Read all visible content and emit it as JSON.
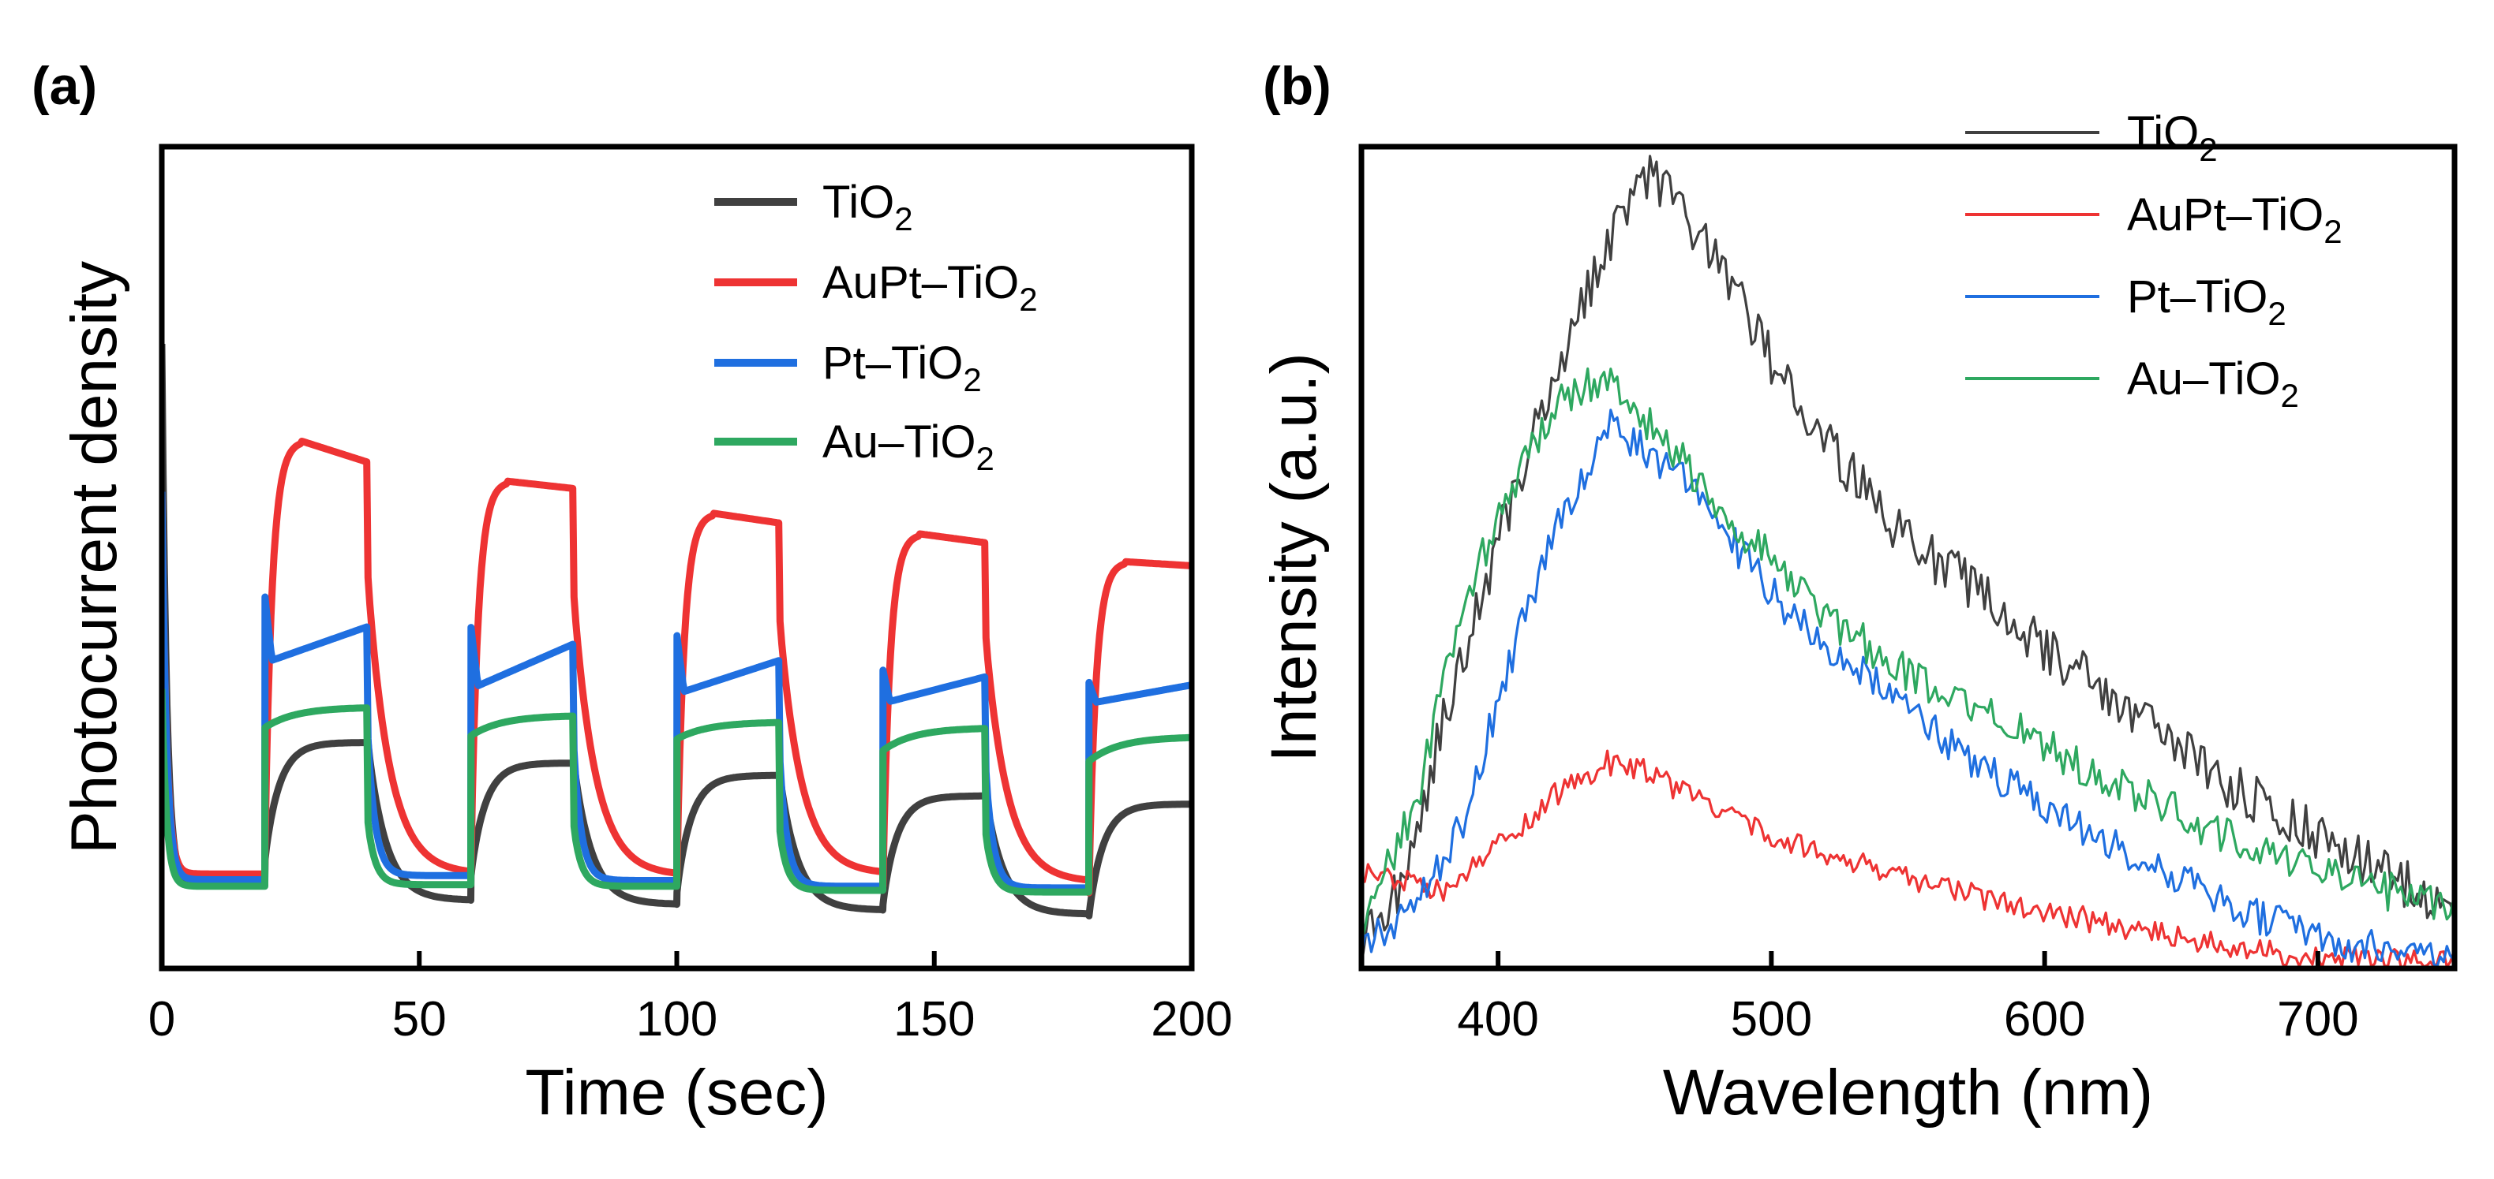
{
  "chart_data": [
    {
      "panel": "(a)",
      "type": "line",
      "xlabel": "Time (sec)",
      "ylabel": "Photocurrent density",
      "xlim": [
        0,
        200
      ],
      "ylim": [
        0,
        100
      ],
      "xticks": [
        0,
        50,
        100,
        150,
        200
      ],
      "legend_position": "top-right",
      "light_on_off_periods_sec": [
        [
          20,
          40
        ],
        [
          60,
          80
        ],
        [
          100,
          120
        ],
        [
          140,
          160
        ],
        [
          180,
          200
        ]
      ],
      "series": [
        {
          "name": "TiO2",
          "label_main": "TiO",
          "label_sub": "2",
          "label_tail": "",
          "color": "#404040",
          "on_start": [
            13.2,
            11.3,
            9.3,
            7.8,
            6.4
          ],
          "on_end": [
            27.5,
            25.0,
            23.5,
            21.0,
            20.0
          ],
          "off_end": [
            8.3,
            7.8,
            7.1,
            6.6,
            6.4
          ],
          "initial_spike": 76,
          "initial_base": 10.5
        },
        {
          "name": "AuPt-TiO2",
          "label_main": "AuPt–TiO",
          "label_sub": "2",
          "label_tail": "",
          "color": "#EE3333",
          "on_start": [
            14.0,
            12.0,
            11.0,
            10.0,
            9.2
          ],
          "on_end": [
            61.6,
            58.4,
            54.2,
            51.8,
            49.0
          ],
          "on_peak": [
            64.2,
            59.3,
            55.4,
            52.9,
            49.5
          ],
          "off_end": [
            11.5,
            11.3,
            11.5,
            10.5,
            10.5
          ],
          "initial_spike": 58,
          "initial_base": 11.5
        },
        {
          "name": "Pt-TiO2",
          "label_main": "Pt–TiO",
          "label_sub": "2",
          "label_tail": "",
          "color": "#1F6FE0",
          "on_start": [
            45.2,
            41.5,
            40.5,
            36.3,
            34.8
          ],
          "on_end": [
            41.6,
            39.5,
            37.5,
            35.5,
            34.5
          ],
          "on_low": [
            37.5,
            34.4,
            33.7,
            32.5,
            32.4
          ],
          "off_end": [
            11.3,
            10.7,
            10.0,
            9.8,
            9.7
          ],
          "initial_spike": 58,
          "initial_base": 10.8
        },
        {
          "name": "Au-TiO2",
          "label_main": "Au–TiO",
          "label_sub": "2",
          "label_tail": "",
          "color": "#2EA860",
          "on_start": [
            29.3,
            28.3,
            27.9,
            26.5,
            25.2
          ],
          "on_end": [
            31.8,
            30.8,
            30.0,
            29.3,
            28.2
          ],
          "off_end": [
            10.2,
            10.0,
            9.5,
            9.3,
            9.2
          ],
          "initial_spike": 34,
          "initial_base": 10.0
        }
      ]
    },
    {
      "panel": "(b)",
      "type": "line",
      "xlabel": "Wavelength (nm)",
      "ylabel": "Intensity (a.u.)",
      "xlim": [
        350,
        750
      ],
      "ylim": [
        0,
        100
      ],
      "xticks": [
        400,
        500,
        600,
        700
      ],
      "legend_position": "top-right",
      "series": [
        {
          "name": "TiO2",
          "label_main": "TiO",
          "label_sub": "2",
          "label_tail": "",
          "color": "#404040",
          "points": [
            [
              350,
              3
            ],
            [
              365,
              10
            ],
            [
              380,
              30
            ],
            [
              400,
              52
            ],
            [
              420,
              72
            ],
            [
              440,
              88
            ],
            [
              452,
              97
            ],
            [
              460,
              95
            ],
            [
              480,
              86
            ],
            [
              500,
              74
            ],
            [
              520,
              64
            ],
            [
              550,
              52
            ],
            [
              580,
              45
            ],
            [
              600,
              39
            ],
            [
              630,
              32
            ],
            [
              660,
              24
            ],
            [
              700,
              16
            ],
            [
              740,
              9
            ],
            [
              750,
              8
            ]
          ],
          "noise": 3.0
        },
        {
          "name": "AuPt-TiO2",
          "label_main": "AuPt–TiO",
          "label_sub": "2",
          "label_tail": "",
          "color": "#EE3333",
          "points": [
            [
              350,
              12
            ],
            [
              365,
              11
            ],
            [
              380,
              9
            ],
            [
              400,
              15
            ],
            [
              420,
              21
            ],
            [
              440,
              25
            ],
            [
              455,
              24
            ],
            [
              480,
              19
            ],
            [
              500,
              16
            ],
            [
              530,
              13
            ],
            [
              560,
              10
            ],
            [
              600,
              7
            ],
            [
              630,
              5
            ],
            [
              680,
              2
            ],
            [
              720,
              1
            ],
            [
              750,
              1
            ]
          ],
          "noise": 1.5
        },
        {
          "name": "Pt-TiO2",
          "label_main": "Pt–TiO",
          "label_sub": "2",
          "label_tail": "",
          "color": "#1F6FE0",
          "points": [
            [
              350,
              3
            ],
            [
              360,
              5
            ],
            [
              375,
              10
            ],
            [
              390,
              20
            ],
            [
              400,
              33
            ],
            [
              420,
              53
            ],
            [
              440,
              66
            ],
            [
              450,
              64
            ],
            [
              470,
              59
            ],
            [
              490,
              50
            ],
            [
              510,
              42
            ],
            [
              530,
              37
            ],
            [
              550,
              31
            ],
            [
              575,
              25
            ],
            [
              600,
              20
            ],
            [
              620,
              16
            ],
            [
              650,
              11
            ],
            [
              680,
              6
            ],
            [
              710,
              3
            ],
            [
              750,
              2
            ]
          ],
          "noise": 2.2
        },
        {
          "name": "Au-TiO2",
          "label_main": "Au–TiO",
          "label_sub": "2",
          "label_tail": "",
          "color": "#2EA860",
          "points": [
            [
              350,
              5
            ],
            [
              370,
              20
            ],
            [
              385,
              42
            ],
            [
              400,
              55
            ],
            [
              420,
              68
            ],
            [
              437,
              72
            ],
            [
              450,
              68
            ],
            [
              470,
              61
            ],
            [
              490,
              53
            ],
            [
              520,
              43
            ],
            [
              550,
              36
            ],
            [
              580,
              31
            ],
            [
              600,
              27
            ],
            [
              630,
              22
            ],
            [
              660,
              17
            ],
            [
              700,
              12
            ],
            [
              730,
              9
            ],
            [
              750,
              7
            ]
          ],
          "noise": 2.4
        }
      ]
    }
  ]
}
